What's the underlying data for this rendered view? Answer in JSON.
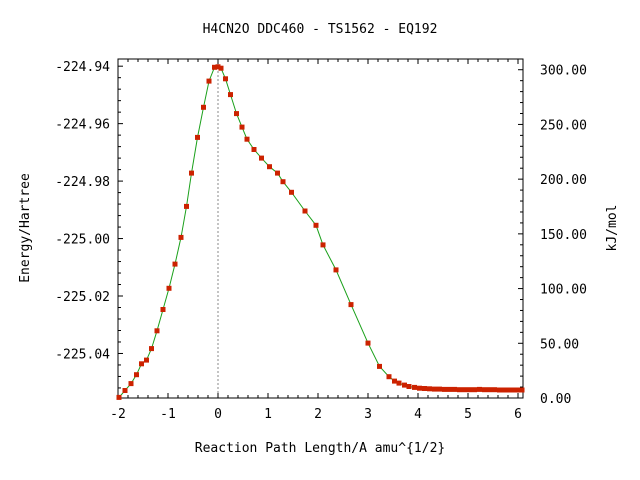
{
  "chart_data": {
    "type": "line",
    "title": "H4CN2O   DDC460 - TS1562 - EQ192",
    "xlabel": "Reaction Path Length/A amu^{1/2}",
    "ylabel": "Energy/Hartree",
    "y2label": "kJ/mol",
    "xlim": [
      -2.0,
      6.1
    ],
    "ylim": [
      -225.0555,
      -224.9375
    ],
    "y2lim": [
      0.0,
      309.8
    ],
    "xticks": [
      "-2",
      "-1",
      "0",
      "1",
      "2",
      "3",
      "4",
      "5",
      "6"
    ],
    "yticks": [
      "-224.94",
      "-224.96",
      "-224.98",
      "-225.00",
      "-225.02",
      "-225.04"
    ],
    "y2ticks": [
      "300.00",
      "250.00",
      "200.00",
      "150.00",
      "100.00",
      "50.00",
      "0.00"
    ],
    "ts_marker_x": 0.0,
    "grid": false,
    "colors": {
      "line": "#1aa01a",
      "marker": "#cc2200",
      "ts_line": "#888888"
    },
    "series": [
      {
        "x": [
          -1.98,
          -1.86,
          -1.74,
          -1.63,
          -1.53,
          -1.43,
          -1.33,
          -1.22,
          -1.1,
          -0.98,
          -0.86,
          -0.74,
          -0.63,
          -0.53,
          -0.41,
          -0.29,
          -0.18,
          -0.07,
          0.0,
          0.06,
          0.15,
          0.25,
          0.37,
          0.48,
          0.58,
          0.72,
          0.87,
          1.03,
          1.19,
          1.3,
          1.47,
          1.74,
          1.96,
          2.1,
          2.36,
          2.66,
          3.0,
          3.23,
          3.42,
          3.53,
          3.62,
          3.73,
          3.82,
          3.93,
          4.03,
          4.13,
          4.23,
          4.33,
          4.43,
          4.53,
          4.63,
          4.73,
          4.83,
          4.93,
          5.03,
          5.13,
          5.23,
          5.33,
          5.43,
          5.53,
          5.63,
          5.73,
          5.83,
          5.93,
          6.03,
          6.08
        ],
        "y": [
          -225.0553,
          -225.0529,
          -225.0505,
          -225.0474,
          -225.0436,
          -225.0423,
          -225.0383,
          -225.0321,
          -225.0247,
          -225.0173,
          -225.0089,
          -224.9996,
          -224.9888,
          -224.9772,
          -224.9648,
          -224.9543,
          -224.9452,
          -224.9404,
          -224.9402,
          -224.9407,
          -224.9444,
          -224.9499,
          -224.9565,
          -224.9612,
          -224.9654,
          -224.969,
          -224.972,
          -224.975,
          -224.9772,
          -224.9802,
          -224.9839,
          -224.9904,
          -224.9954,
          -225.0022,
          -225.0109,
          -225.023,
          -225.0364,
          -225.0445,
          -225.0481,
          -225.0496,
          -225.0503,
          -225.051,
          -225.0515,
          -225.0518,
          -225.0521,
          -225.0522,
          -225.0523,
          -225.0524,
          -225.0524,
          -225.0525,
          -225.0525,
          -225.0525,
          -225.0526,
          -225.0526,
          -225.0526,
          -225.0526,
          -225.0525,
          -225.0526,
          -225.0526,
          -225.0526,
          -225.0527,
          -225.0527,
          -225.0527,
          -225.0527,
          -225.0527,
          -225.0527
        ]
      }
    ]
  }
}
